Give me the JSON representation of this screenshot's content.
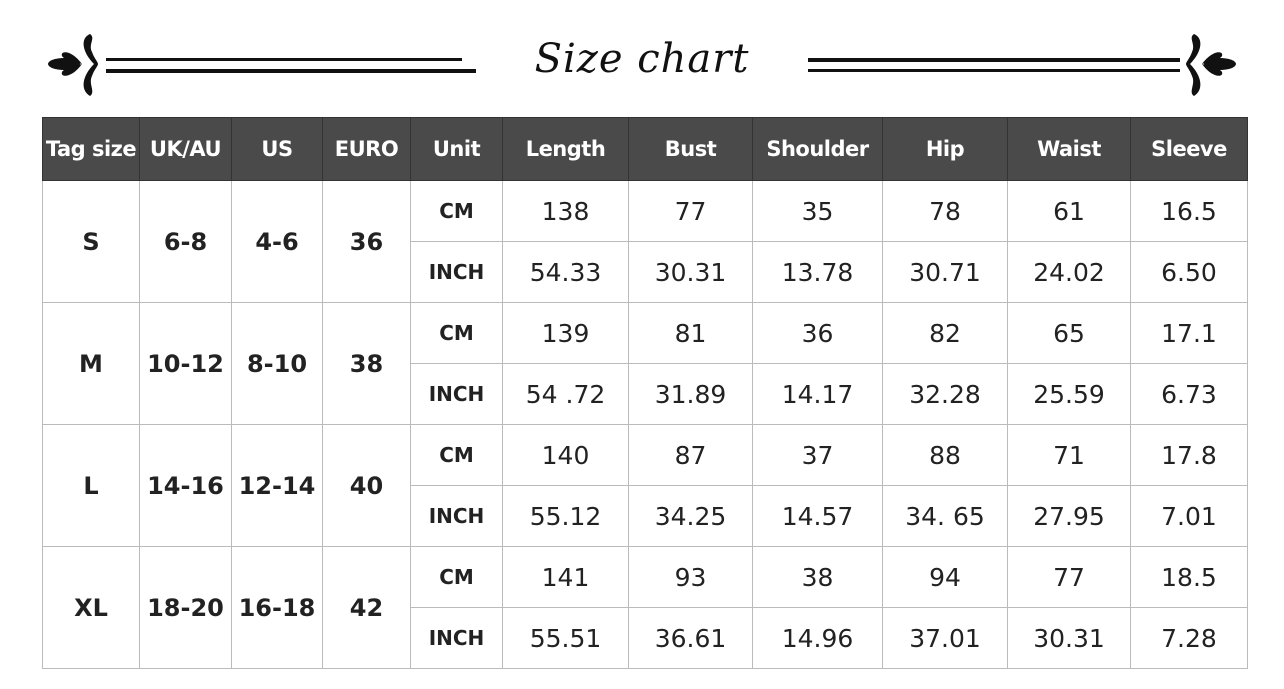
{
  "title": "Size chart",
  "colors": {
    "header_bg": "#4a4a4a",
    "header_text": "#ffffff",
    "border": "#bbbbbb"
  },
  "headers": [
    "Tag size",
    "UK/AU",
    "US",
    "EURO",
    "Unit",
    "Length",
    "Bust",
    "Shoulder",
    "Hip",
    "Waist",
    "Sleeve"
  ],
  "sizes": [
    {
      "tag": "S",
      "uk": "6-8",
      "us": "4-6",
      "euro": "36",
      "rows": [
        {
          "unit": "CM",
          "values": [
            "138",
            "77",
            "35",
            "78",
            "61",
            "16.5"
          ]
        },
        {
          "unit": "INCH",
          "values": [
            "54.33",
            "30.31",
            "13.78",
            "30.71",
            "24.02",
            "6.50"
          ]
        }
      ]
    },
    {
      "tag": "M",
      "uk": "10-12",
      "us": "8-10",
      "euro": "38",
      "rows": [
        {
          "unit": "CM",
          "values": [
            "139",
            "81",
            "36",
            "82",
            "65",
            "17.1"
          ]
        },
        {
          "unit": "INCH",
          "values": [
            "54 .72",
            "31.89",
            "14.17",
            "32.28",
            "25.59",
            "6.73"
          ]
        }
      ]
    },
    {
      "tag": "L",
      "uk": "14-16",
      "us": "12-14",
      "euro": "40",
      "rows": [
        {
          "unit": "CM",
          "values": [
            "140",
            "87",
            "37",
            "88",
            "71",
            "17.8"
          ]
        },
        {
          "unit": "INCH",
          "values": [
            "55.12",
            "34.25",
            "14.57",
            "34. 65",
            "27.95",
            "7.01"
          ]
        }
      ]
    },
    {
      "tag": "XL",
      "uk": "18-20",
      "us": "16-18",
      "euro": "42",
      "rows": [
        {
          "unit": "CM",
          "values": [
            "141",
            "93",
            "38",
            "94",
            "77",
            "18.5"
          ]
        },
        {
          "unit": "INCH",
          "values": [
            "55.51",
            "36.61",
            "14.96",
            "37.01",
            "30.31",
            "7.28"
          ]
        }
      ]
    }
  ]
}
